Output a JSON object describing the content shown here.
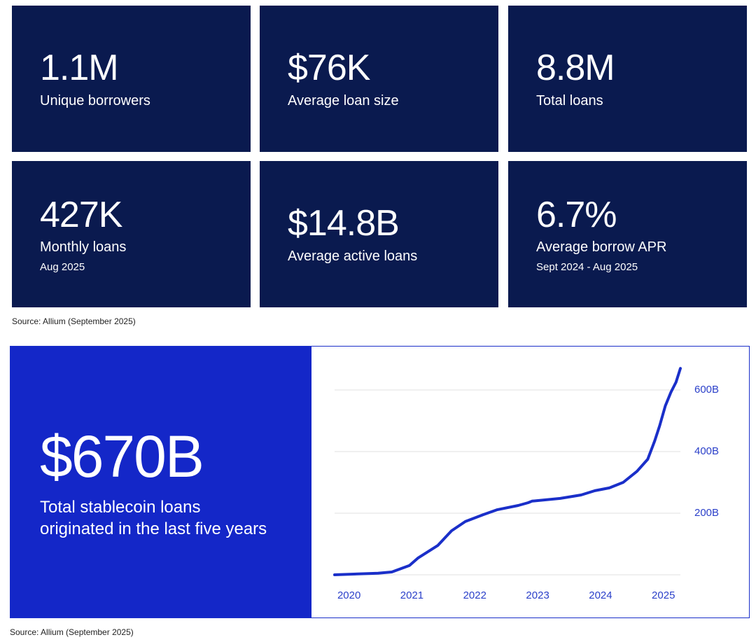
{
  "stats": [
    {
      "value": "1.1M",
      "label": "Unique borrowers"
    },
    {
      "value": "$76K",
      "label": "Average loan size"
    },
    {
      "value": "8.8M",
      "label": "Total loans"
    },
    {
      "value": "427K",
      "label": "Monthly loans",
      "note": "Aug 2025"
    },
    {
      "value": "$14.8B",
      "label": "Average active loans"
    },
    {
      "value": "6.7%",
      "label": "Average borrow APR",
      "note": "Sept 2024 - Aug 2025"
    }
  ],
  "stats_source": "Source: Allium (September 2025)",
  "highlight": {
    "value": "$670B",
    "label_lines": [
      "Total stablecoin loans",
      "originated in the last five years"
    ]
  },
  "chart_source": "Source: Allium (September 2025)",
  "chart_data": {
    "type": "line",
    "color": "#1a2fc9",
    "x": [
      2019.77,
      2020.46,
      2020.68,
      2020.96,
      2021.1,
      2021.41,
      2021.63,
      2021.85,
      2022.13,
      2022.35,
      2022.69,
      2022.85,
      2022.91,
      2023.36,
      2023.69,
      2023.91,
      2024.14,
      2024.36,
      2024.58,
      2024.75,
      2024.86,
      2024.94,
      2025.03,
      2025.12,
      2025.2,
      2025.27
    ],
    "values": [
      0,
      5,
      9,
      30,
      55,
      95,
      143,
      173,
      195,
      211,
      225,
      234,
      239,
      248,
      259,
      273,
      282,
      300,
      336,
      375,
      434,
      484,
      548,
      593,
      625,
      670
    ],
    "xlim": [
      2019.77,
      2025.27
    ],
    "xticks": [
      2020,
      2021,
      2022,
      2023,
      2024,
      2025
    ],
    "ylim": [
      0,
      680
    ],
    "yticks": [
      0,
      {
        "value": 200,
        "label": "200B"
      },
      {
        "value": 400,
        "label": "400B"
      },
      {
        "value": 600,
        "label": "600B"
      }
    ],
    "grid": true
  }
}
